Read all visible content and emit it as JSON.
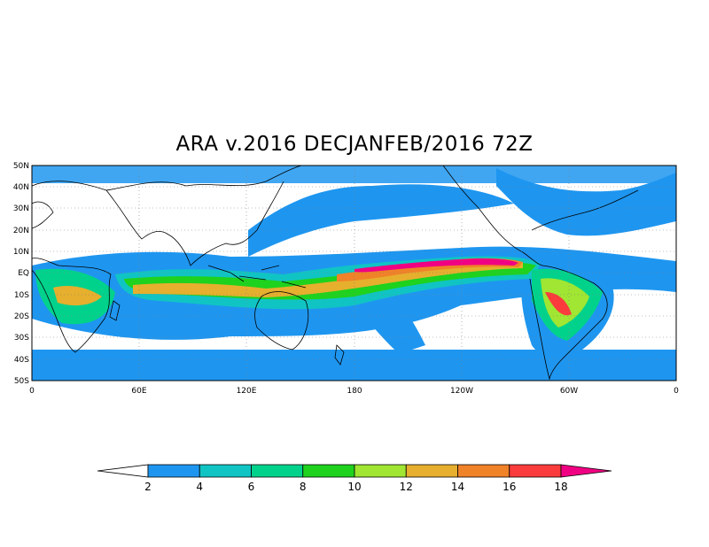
{
  "title": "ARA v.2016 DECJANFEB/2016 72Z",
  "map": {
    "lat_labels": [
      "50N",
      "40N",
      "30N",
      "20N",
      "10N",
      "EQ",
      "10S",
      "20S",
      "30S",
      "40S",
      "50S"
    ],
    "lon_labels": [
      "0",
      "60E",
      "120E",
      "180",
      "120W",
      "60W",
      "0"
    ],
    "lat_range": [
      -50,
      50
    ],
    "lon_range": [
      0,
      360
    ],
    "grid": "dotted"
  },
  "colorbar": {
    "ticks": [
      "2",
      "4",
      "6",
      "8",
      "10",
      "12",
      "14",
      "16",
      "18"
    ],
    "colors": [
      "#ffffff",
      "#1e96f0",
      "#10c4c4",
      "#00d28c",
      "#1ed21e",
      "#a0e632",
      "#e6af2d",
      "#f08228",
      "#fa3c3c",
      "#f00082"
    ]
  }
}
